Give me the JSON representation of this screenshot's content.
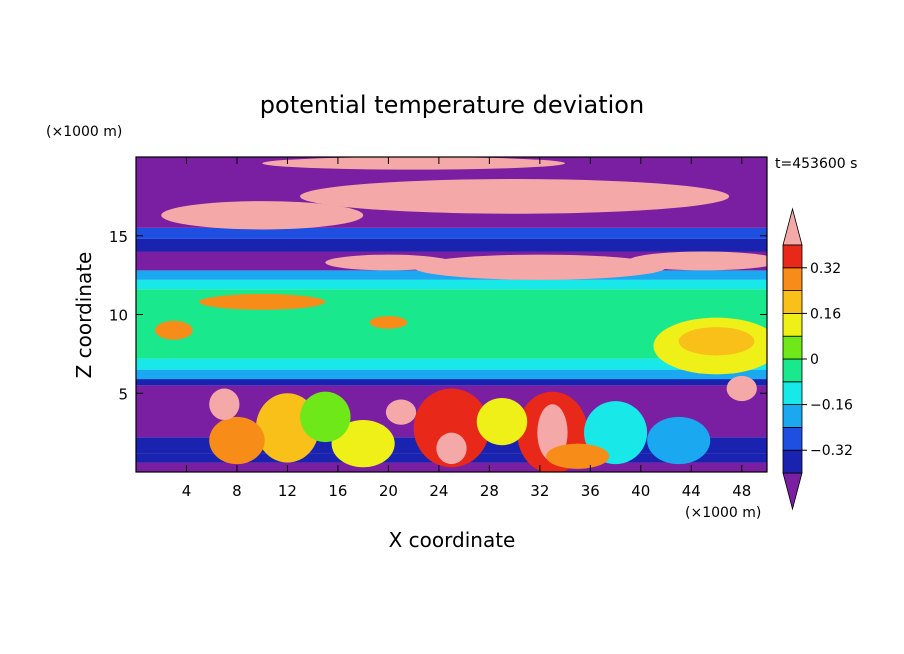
{
  "chart_data": {
    "type": "heatmap",
    "title": "potential temperature deviation",
    "xlabel": "X coordinate",
    "ylabel": "Z coordinate",
    "x_unit": "(×1000 m)",
    "y_unit": "(×1000 m)",
    "time_label": "t=453600 s",
    "xlim": [
      0,
      50
    ],
    "ylim": [
      0,
      20
    ],
    "x_ticks": [
      4,
      8,
      12,
      16,
      20,
      24,
      28,
      32,
      36,
      40,
      44,
      48
    ],
    "y_ticks": [
      5,
      10,
      15
    ],
    "colorbar": {
      "tick_values": [
        0.32,
        0.16,
        0,
        -0.16,
        -0.32
      ],
      "tick_labels": [
        "0.32",
        "0.16",
        "0",
        "−0.16",
        "−0.32"
      ],
      "levels": [
        -0.4,
        -0.32,
        -0.24,
        -0.16,
        -0.08,
        0,
        0.08,
        0.16,
        0.24,
        0.32,
        0.4
      ],
      "colors": [
        "#7a1fa2",
        "#1a23b0",
        "#1f4fe0",
        "#1aa8f0",
        "#19e8e8",
        "#19e88c",
        "#6fe819",
        "#f0f019",
        "#f8c018",
        "#f88c18",
        "#e82818",
        "#f4a8a8"
      ]
    },
    "bands": [
      {
        "z": [
          0,
          0.6
        ],
        "x": [
          0,
          50
        ],
        "value": -0.45
      },
      {
        "z": [
          0.6,
          1.2
        ],
        "x": [
          0,
          50
        ],
        "value": -0.36
      },
      {
        "z": [
          1.2,
          2.2
        ],
        "x": [
          0,
          50
        ],
        "value": -0.36
      },
      {
        "z": [
          2.2,
          5.5
        ],
        "x": [
          0,
          50
        ],
        "value": -0.45
      },
      {
        "z": [
          5.5,
          5.9
        ],
        "x": [
          0,
          50
        ],
        "value": -0.36
      },
      {
        "z": [
          5.9,
          6.5
        ],
        "x": [
          0,
          50
        ],
        "value": -0.2
      },
      {
        "z": [
          6.5,
          7.2
        ],
        "x": [
          0,
          50
        ],
        "value": -0.12
      },
      {
        "z": [
          7.2,
          11.6
        ],
        "x": [
          0,
          50
        ],
        "value": -0.04
      },
      {
        "z": [
          11.6,
          12.2
        ],
        "x": [
          0,
          50
        ],
        "value": -0.12
      },
      {
        "z": [
          12.2,
          12.8
        ],
        "x": [
          0,
          50
        ],
        "value": -0.2
      },
      {
        "z": [
          12.8,
          14.0
        ],
        "x": [
          0,
          50
        ],
        "value": -0.45
      },
      {
        "z": [
          14.0,
          14.8
        ],
        "x": [
          0,
          50
        ],
        "value": -0.36
      },
      {
        "z": [
          14.8,
          15.5
        ],
        "x": [
          0,
          50
        ],
        "value": -0.28
      },
      {
        "z": [
          15.5,
          20.0
        ],
        "x": [
          0,
          50
        ],
        "value": -0.45
      }
    ],
    "features": [
      {
        "x": 46,
        "z": 8.0,
        "rx": 5,
        "rz": 1.8,
        "value": 0.12
      },
      {
        "x": 46,
        "z": 8.3,
        "rx": 3,
        "rz": 0.9,
        "value": 0.18
      },
      {
        "x": 30,
        "z": 17.5,
        "rx": 17,
        "rz": 1.1,
        "value": 0.45
      },
      {
        "x": 10,
        "z": 16.3,
        "rx": 8,
        "rz": 0.9,
        "value": 0.45
      },
      {
        "x": 32,
        "z": 13.0,
        "rx": 10,
        "rz": 0.8,
        "value": 0.45
      },
      {
        "x": 45,
        "z": 13.4,
        "rx": 6,
        "rz": 0.6,
        "value": 0.45
      },
      {
        "x": 22,
        "z": 19.6,
        "rx": 12,
        "rz": 0.4,
        "value": 0.45
      },
      {
        "x": 20,
        "z": 13.3,
        "rx": 5,
        "rz": 0.5,
        "value": 0.45
      },
      {
        "x": 33,
        "z": 2.5,
        "rx": 2.8,
        "rz": 2.6,
        "value": 0.32
      },
      {
        "x": 33,
        "z": 2.5,
        "rx": 1.2,
        "rz": 1.8,
        "value": 0.45
      },
      {
        "x": 25,
        "z": 2.8,
        "rx": 3,
        "rz": 2.5,
        "value": 0.32
      },
      {
        "x": 25,
        "z": 1.5,
        "rx": 1.2,
        "rz": 1.0,
        "value": 0.45
      },
      {
        "x": 29,
        "z": 3.2,
        "rx": 2,
        "rz": 1.5,
        "value": 0.12
      },
      {
        "x": 12,
        "z": 2.8,
        "rx": 2.5,
        "rz": 2.2,
        "value": 0.2
      },
      {
        "x": 8,
        "z": 2.0,
        "rx": 2.2,
        "rz": 1.5,
        "value": 0.3
      },
      {
        "x": 18,
        "z": 1.8,
        "rx": 2.5,
        "rz": 1.5,
        "value": 0.1
      },
      {
        "x": 21,
        "z": 3.8,
        "rx": 1.2,
        "rz": 0.8,
        "value": 0.45
      },
      {
        "x": 38,
        "z": 2.5,
        "rx": 2.5,
        "rz": 2.0,
        "value": -0.12
      },
      {
        "x": 43,
        "z": 2.0,
        "rx": 2.5,
        "rz": 1.5,
        "value": -0.2
      },
      {
        "x": 15,
        "z": 3.5,
        "rx": 2,
        "rz": 1.6,
        "value": 0.03
      },
      {
        "x": 35,
        "z": 1.0,
        "rx": 2.5,
        "rz": 0.8,
        "value": 0.25
      },
      {
        "x": 7,
        "z": 4.3,
        "rx": 1.2,
        "rz": 1.0,
        "value": 0.45
      },
      {
        "x": 48,
        "z": 5.3,
        "rx": 1.2,
        "rz": 0.8,
        "value": 0.45
      },
      {
        "x": 10,
        "z": 10.8,
        "rx": 5,
        "rz": 0.5,
        "value": 0.28
      },
      {
        "x": 20,
        "z": 9.5,
        "rx": 1.5,
        "rz": 0.4,
        "value": 0.25
      },
      {
        "x": 3,
        "z": 9.0,
        "rx": 1.5,
        "rz": 0.6,
        "value": 0.28
      }
    ]
  }
}
